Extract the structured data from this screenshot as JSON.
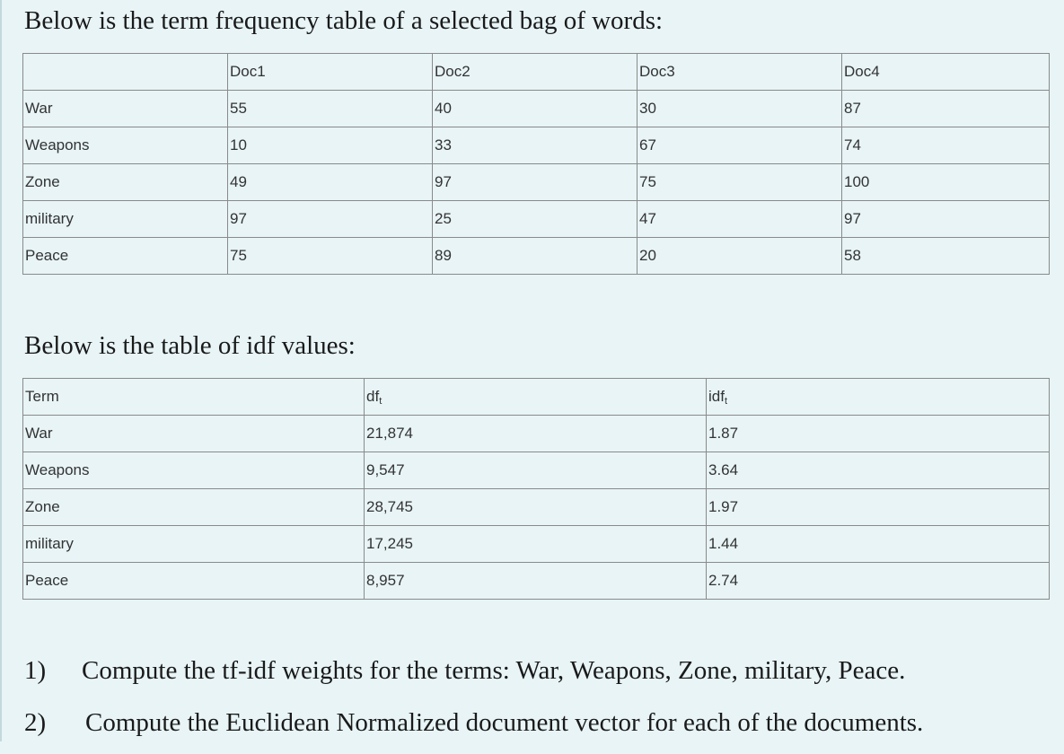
{
  "tf_section": {
    "heading": "Below is the term frequency table of a selected bag of words:",
    "headers": [
      "",
      "Doc1",
      "Doc2",
      "Doc3",
      "Doc4"
    ],
    "rows": [
      {
        "term": "War",
        "values": [
          "55",
          "40",
          "30",
          "87"
        ]
      },
      {
        "term": "Weapons",
        "values": [
          "10",
          "33",
          "67",
          "74"
        ]
      },
      {
        "term": "Zone",
        "values": [
          "49",
          "97",
          "75",
          "100"
        ]
      },
      {
        "term": "military",
        "values": [
          "97",
          "25",
          "47",
          "97"
        ]
      },
      {
        "term": "Peace",
        "values": [
          "75",
          "89",
          "20",
          "58"
        ]
      }
    ]
  },
  "idf_section": {
    "heading": "Below is the table of idf values:",
    "headers": {
      "term": "Term",
      "df": "df",
      "idf": "idf",
      "subscript": "t"
    },
    "rows": [
      {
        "term": "War",
        "df": "21,874",
        "idf": "1.87"
      },
      {
        "term": "Weapons",
        "df": "9,547",
        "idf": "3.64"
      },
      {
        "term": "Zone",
        "df": "28,745",
        "idf": "1.97"
      },
      {
        "term": "military",
        "df": "17,245",
        "idf": "1.44"
      },
      {
        "term": "Peace",
        "df": "8,957",
        "idf": "2.74"
      }
    ]
  },
  "questions": [
    {
      "number": "1)",
      "text": "Compute the tf-idf weights for the terms: War, Weapons, Zone, military, Peace."
    },
    {
      "number": "2)",
      "text": "Compute the Euclidean Normalized document vector for each of the documents."
    }
  ]
}
